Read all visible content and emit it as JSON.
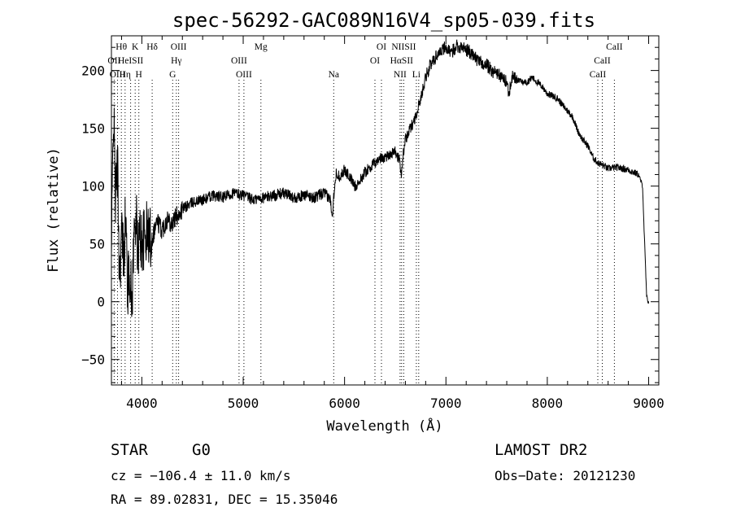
{
  "chart_data": {
    "type": "line",
    "title": "spec-56292-GAC089N16V4_sp05-039.fits",
    "xlabel": "Wavelength (Å)",
    "ylabel": "Flux (relative)",
    "xlim": [
      3700,
      9100
    ],
    "ylim": [
      -72,
      230
    ],
    "x_ticks": [
      4000,
      5000,
      6000,
      7000,
      8000,
      9000
    ],
    "y_ticks": [
      -50,
      0,
      50,
      100,
      150,
      200
    ],
    "x_tick_labels": [
      "4000",
      "5000",
      "6000",
      "7000",
      "8000",
      "9000"
    ],
    "y_tick_labels": [
      "−50",
      "0",
      "50",
      "100",
      "150",
      "200"
    ],
    "grid": false,
    "series": [
      {
        "x": [
          3700,
          3720,
          3740,
          3760,
          3780,
          3800,
          3820,
          3840,
          3860,
          3880,
          3900,
          3920,
          3940,
          3960,
          3980,
          4000,
          4050,
          4100,
          4150,
          4200,
          4250,
          4300,
          4350,
          4400,
          4500,
          4600,
          4700,
          4800,
          4900,
          5000,
          5100,
          5200,
          5300,
          5400,
          5500,
          5600,
          5700,
          5800,
          5860,
          5880,
          5900,
          5920,
          5950,
          6000,
          6050,
          6100,
          6150,
          6200,
          6250,
          6300,
          6350,
          6400,
          6450,
          6500,
          6540,
          6560,
          6580,
          6600,
          6650,
          6700,
          6750,
          6800,
          6850,
          6900,
          6950,
          7000,
          7050,
          7100,
          7150,
          7200,
          7250,
          7300,
          7350,
          7400,
          7450,
          7500,
          7550,
          7600,
          7620,
          7650,
          7700,
          7750,
          7800,
          7850,
          7900,
          7950,
          8000,
          8050,
          8100,
          8150,
          8200,
          8250,
          8300,
          8350,
          8400,
          8450,
          8500,
          8550,
          8600,
          8650,
          8700,
          8750,
          8800,
          8850,
          8900,
          8940,
          8960,
          8980,
          8990,
          9000
        ],
        "y": [
          35,
          170,
          90,
          120,
          20,
          60,
          40,
          75,
          10,
          30,
          -5,
          50,
          80,
          40,
          60,
          50,
          60,
          55,
          70,
          62,
          72,
          68,
          75,
          80,
          86,
          88,
          92,
          90,
          94,
          92,
          88,
          90,
          92,
          94,
          90,
          92,
          90,
          94,
          88,
          75,
          100,
          112,
          108,
          114,
          108,
          100,
          104,
          112,
          116,
          120,
          124,
          125,
          128,
          130,
          122,
          112,
          128,
          140,
          150,
          160,
          175,
          195,
          205,
          212,
          218,
          220,
          214,
          222,
          220,
          218,
          215,
          210,
          206,
          205,
          200,
          198,
          194,
          190,
          180,
          195,
          192,
          190,
          190,
          194,
          190,
          186,
          180,
          178,
          176,
          170,
          165,
          160,
          148,
          140,
          135,
          125,
          120,
          118,
          115,
          116,
          116,
          115,
          114,
          112,
          110,
          100,
          50,
          5,
          0,
          0
        ]
      }
    ],
    "spectral_lines": [
      {
        "label": "Hθ",
        "wave": 3798,
        "row": 1
      },
      {
        "label": "K",
        "wave": 3934,
        "row": 1
      },
      {
        "label": "Hδ",
        "wave": 4102,
        "row": 1
      },
      {
        "label": "OIII",
        "wave": 4363,
        "row": 1
      },
      {
        "label": "Mg",
        "wave": 5175,
        "row": 1
      },
      {
        "label": "OI",
        "wave": 6364,
        "row": 1
      },
      {
        "label": "NIISII",
        "wave": 6584,
        "row": 1
      },
      {
        "label": "CaII",
        "wave": 8662,
        "row": 1
      },
      {
        "label": "OII",
        "wave": 3727,
        "row": 2
      },
      {
        "label": "HeISII",
        "wave": 3889,
        "row": 2
      },
      {
        "label": "Hγ",
        "wave": 4340,
        "row": 2
      },
      {
        "label": "OIII",
        "wave": 4959,
        "row": 2
      },
      {
        "label": "OI",
        "wave": 6300,
        "row": 2
      },
      {
        "label": "HαSII",
        "wave": 6563,
        "row": 2
      },
      {
        "label": "CaII",
        "wave": 8542,
        "row": 2
      },
      {
        "label": "OIII",
        "wave": 3760,
        "row": 3
      },
      {
        "label": "Hη",
        "wave": 3835,
        "row": 3
      },
      {
        "label": "H",
        "wave": 3970,
        "row": 3
      },
      {
        "label": "G",
        "wave": 4304,
        "row": 3
      },
      {
        "label": "OIII",
        "wave": 5007,
        "row": 3
      },
      {
        "label": "Na",
        "wave": 5893,
        "row": 3
      },
      {
        "label": "NII",
        "wave": 6548,
        "row": 3
      },
      {
        "label": "Li",
        "wave": 6708,
        "row": 3
      },
      {
        "label": "CaII",
        "wave": 8498,
        "row": 3
      }
    ],
    "dotted_line_waves": [
      3727,
      3760,
      3798,
      3835,
      3889,
      3934,
      3970,
      4102,
      4304,
      4340,
      4363,
      4959,
      5007,
      5175,
      5893,
      6300,
      6364,
      6548,
      6563,
      6584,
      6708,
      6731,
      8498,
      8542,
      8662
    ]
  },
  "info": {
    "object_class": "STAR",
    "subclass": "G0",
    "survey": "LAMOST DR2",
    "redshift": "cz = −106.4 ± 11.0 km/s",
    "obs_date": "Obs−Date: 20121230",
    "coords": "RA =  89.02831, DEC =  15.35046"
  }
}
